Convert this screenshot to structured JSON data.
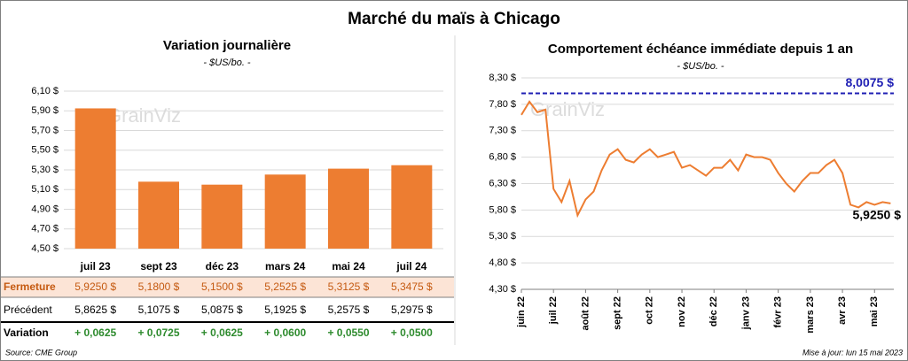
{
  "title": "Marché du maïs à Chicago",
  "watermark": "GrainViz",
  "source": "Source: CME Group",
  "updated": "Mise à jour: lun 15 mai 2023",
  "chart_data": [
    {
      "type": "bar",
      "title": "Variation journalière",
      "subtitle": "- $US/bo. -",
      "categories": [
        "juil 23",
        "sept 23",
        "déc 23",
        "mars 24",
        "mai 24",
        "juil 24"
      ],
      "values": [
        5.925,
        5.18,
        5.15,
        5.2525,
        5.3125,
        5.3475
      ],
      "color": "#ed7d31",
      "ylim": [
        4.5,
        6.1
      ],
      "yticks": [
        {
          "value": 4.5,
          "label": "4,50 $"
        },
        {
          "value": 4.7,
          "label": "4,70 $"
        },
        {
          "value": 4.9,
          "label": "4,90 $"
        },
        {
          "value": 5.1,
          "label": "5,10 $"
        },
        {
          "value": 5.3,
          "label": "5,30 $"
        },
        {
          "value": 5.5,
          "label": "5,50 $"
        },
        {
          "value": 5.7,
          "label": "5,70 $"
        },
        {
          "value": 5.9,
          "label": "5,90 $"
        },
        {
          "value": 6.1,
          "label": "6,10 $"
        }
      ],
      "grid": true
    },
    {
      "type": "line",
      "title": "Comportement échéance immédiate depuis 1 an",
      "subtitle": "- $US/bo. -",
      "x": [
        0,
        0.25,
        0.5,
        0.75,
        1,
        1.25,
        1.5,
        1.75,
        2,
        2.25,
        2.5,
        2.75,
        3,
        3.25,
        3.5,
        3.75,
        4,
        4.25,
        4.5,
        4.75,
        5,
        5.25,
        5.5,
        5.75,
        6,
        6.25,
        6.5,
        6.75,
        7,
        7.25,
        7.5,
        7.75,
        8,
        8.25,
        8.5,
        8.75,
        9,
        9.25,
        9.5,
        9.75,
        10,
        10.25,
        10.5,
        10.75,
        11,
        11.25,
        11.5
      ],
      "series": [
        {
          "name": "Échéance immédiate",
          "color": "#ed7d31",
          "values": [
            7.6,
            7.85,
            7.65,
            7.7,
            6.2,
            5.95,
            6.35,
            5.7,
            6.0,
            6.15,
            6.55,
            6.85,
            6.95,
            6.75,
            6.7,
            6.85,
            6.95,
            6.8,
            6.85,
            6.9,
            6.6,
            6.65,
            6.55,
            6.45,
            6.6,
            6.6,
            6.75,
            6.55,
            6.85,
            6.8,
            6.8,
            6.75,
            6.5,
            6.3,
            6.15,
            6.35,
            6.5,
            6.5,
            6.65,
            6.75,
            6.5,
            5.9,
            5.85,
            5.95,
            5.9,
            5.95,
            5.925
          ]
        }
      ],
      "last_label": "5,9250 $",
      "reference_line": {
        "value": 8.0075,
        "label": "8,0075 $",
        "color": "#1f1fb4"
      },
      "xlim": [
        0,
        11.6
      ],
      "xticks": [
        {
          "value": 0,
          "label": "juin 22"
        },
        {
          "value": 1,
          "label": "juil 22"
        },
        {
          "value": 2,
          "label": "août 22"
        },
        {
          "value": 3,
          "label": "sept 22"
        },
        {
          "value": 4,
          "label": "oct 22"
        },
        {
          "value": 5,
          "label": "nov 22"
        },
        {
          "value": 6,
          "label": "déc 22"
        },
        {
          "value": 7,
          "label": "janv 23"
        },
        {
          "value": 8,
          "label": "févr 23"
        },
        {
          "value": 9,
          "label": "mars 23"
        },
        {
          "value": 10,
          "label": "avr 23"
        },
        {
          "value": 11,
          "label": "mai 23"
        }
      ],
      "ylim": [
        4.3,
        8.3
      ],
      "yticks": [
        {
          "value": 4.3,
          "label": "4,30 $"
        },
        {
          "value": 4.8,
          "label": "4,80 $"
        },
        {
          "value": 5.3,
          "label": "5,30 $"
        },
        {
          "value": 5.8,
          "label": "5,80 $"
        },
        {
          "value": 6.3,
          "label": "6,30 $"
        },
        {
          "value": 6.8,
          "label": "6,80 $"
        },
        {
          "value": 7.3,
          "label": "7,30 $"
        },
        {
          "value": 7.8,
          "label": "7,80 $"
        },
        {
          "value": 8.3,
          "label": "8,30 $"
        }
      ],
      "grid": true
    }
  ],
  "table": {
    "rows": [
      {
        "label": "Fermeture",
        "cells": [
          "5,9250 $",
          "5,1800 $",
          "5,1500 $",
          "5,2525 $",
          "5,3125 $",
          "5,3475 $"
        ]
      },
      {
        "label": "Précédent",
        "cells": [
          "5,8625 $",
          "5,1075 $",
          "5,0875 $",
          "5,1925 $",
          "5,2575 $",
          "5,2975 $"
        ]
      },
      {
        "label": "Variation",
        "cells": [
          "+ 0,0625",
          "+ 0,0725",
          "+ 0,0625",
          "+ 0,0600",
          "+ 0,0550",
          "+ 0,0500"
        ]
      }
    ]
  }
}
